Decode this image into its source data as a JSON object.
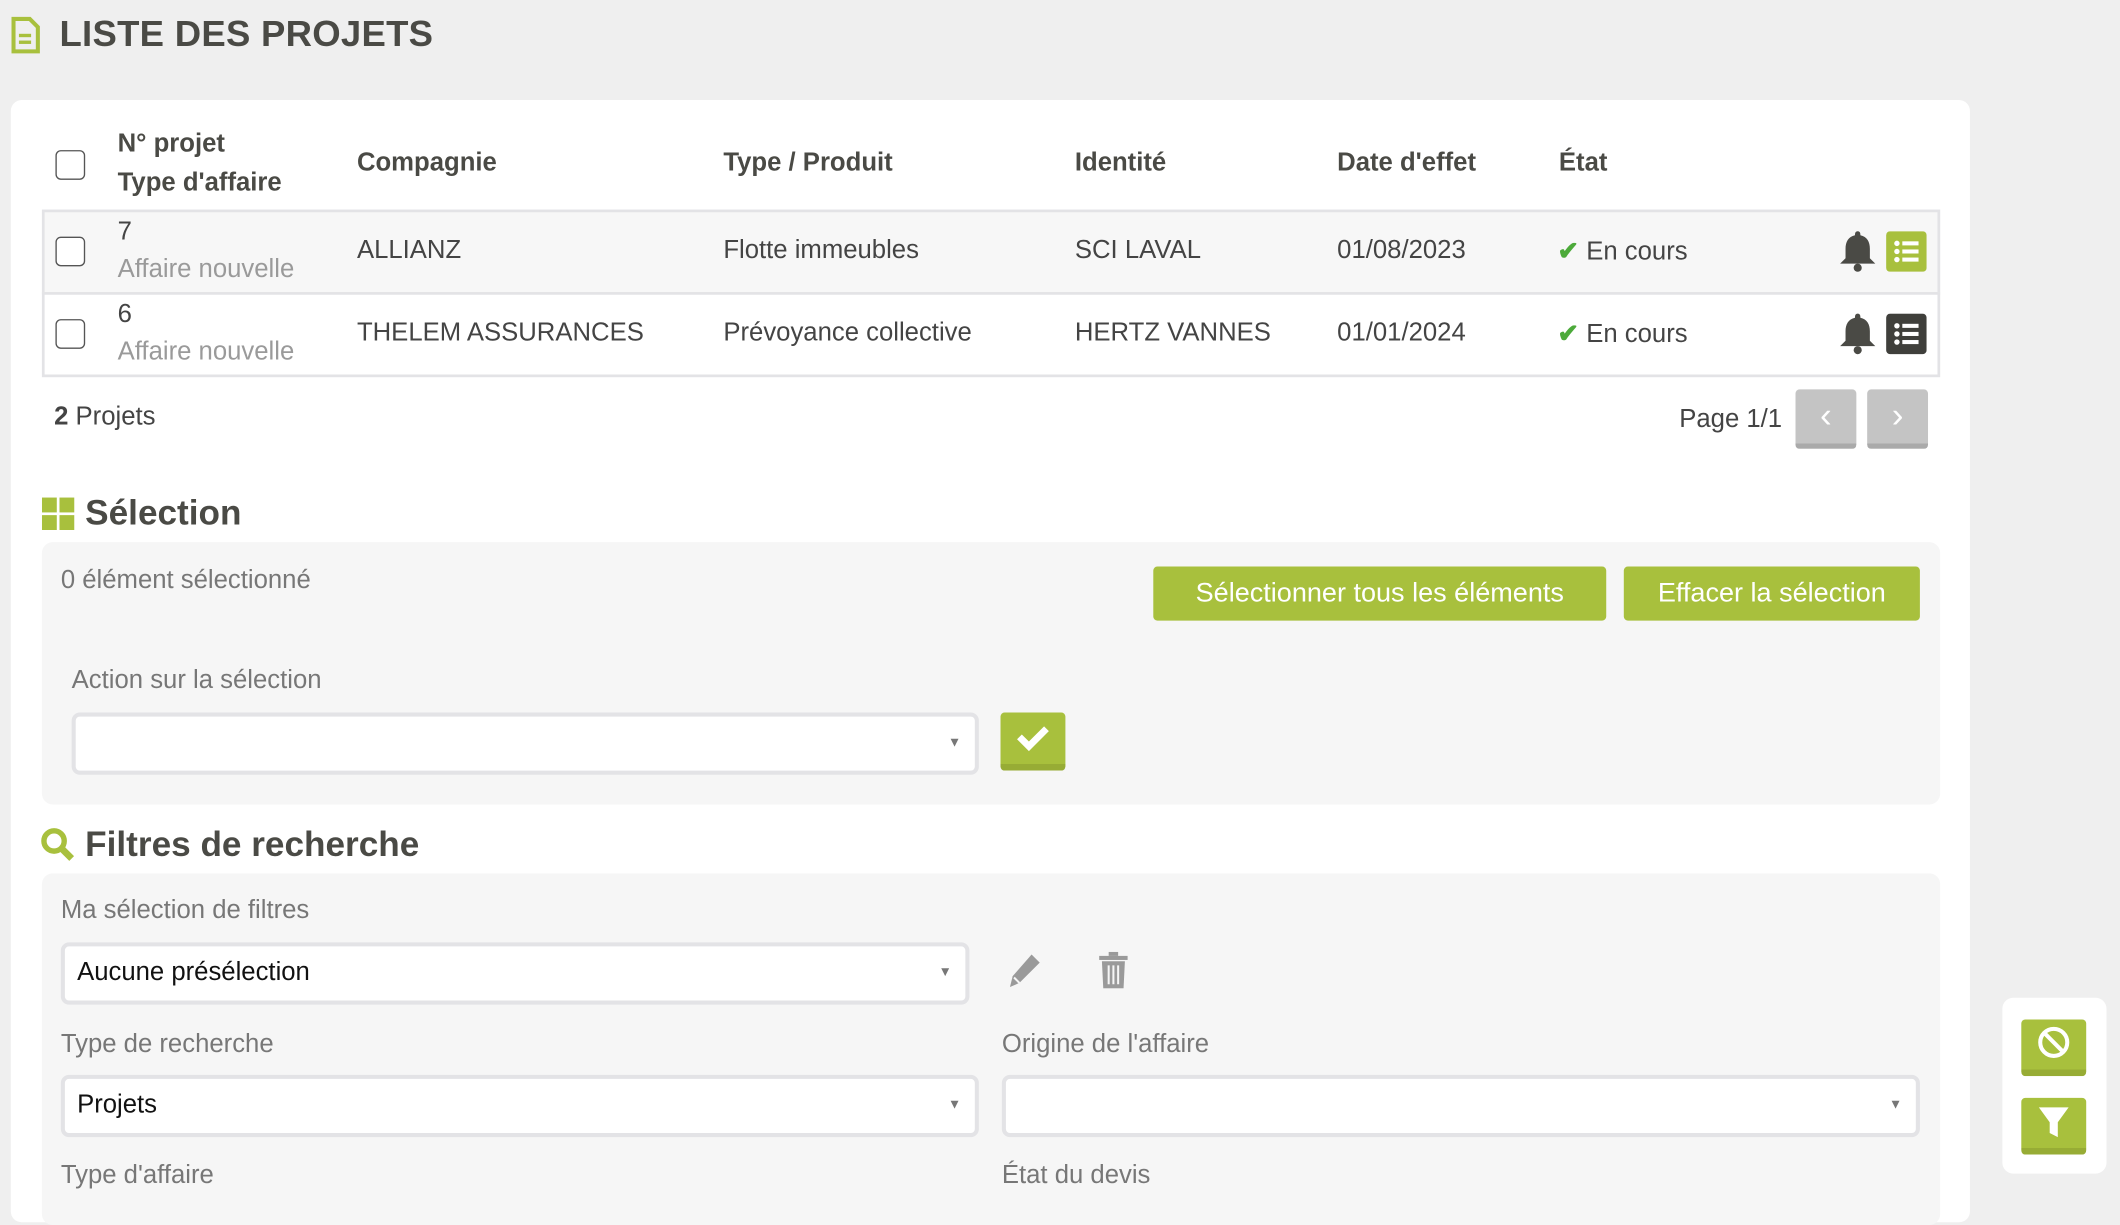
{
  "header": {
    "title": "LISTE DES PROJETS",
    "icon": "document-icon"
  },
  "table": {
    "columns": {
      "num": "N° projet",
      "type_affaire": "Type d'affaire",
      "compagnie": "Compagnie",
      "produit": "Type / Produit",
      "identite": "Identité",
      "date": "Date d'effet",
      "etat": "État"
    },
    "rows": [
      {
        "num": "7",
        "type_affaire": "Affaire nouvelle",
        "compagnie": "ALLIANZ",
        "produit": "Flotte immeubles",
        "identite": "SCI LAVAL",
        "date": "01/08/2023",
        "etat": "En cours",
        "list_active": true
      },
      {
        "num": "6",
        "type_affaire": "Affaire nouvelle",
        "compagnie": "THELEM ASSURANCES",
        "produit": "Prévoyance collective",
        "identite": "HERTZ VANNES",
        "date": "01/01/2024",
        "etat": "En cours",
        "list_active": false
      }
    ],
    "count_num": "2",
    "count_label": "Projets",
    "page_label": "Page 1/1"
  },
  "selection": {
    "title": "Sélection",
    "count_text": "0 élément sélectionné",
    "select_all": "Sélectionner tous les éléments",
    "clear": "Effacer la sélection",
    "action_label": "Action sur la sélection",
    "action_value": ""
  },
  "filters": {
    "title": "Filtres de recherche",
    "preset_label": "Ma sélection de filtres",
    "preset_value": "Aucune présélection",
    "type_recherche_label": "Type de recherche",
    "type_recherche_value": "Projets",
    "origine_label": "Origine de l'affaire",
    "origine_value": "",
    "type_affaire_label": "Type d'affaire",
    "etat_devis_label": "État du devis"
  },
  "colors": {
    "accent": "#a8c03d",
    "dark": "#4a4a45",
    "status": "#4caa3a"
  }
}
